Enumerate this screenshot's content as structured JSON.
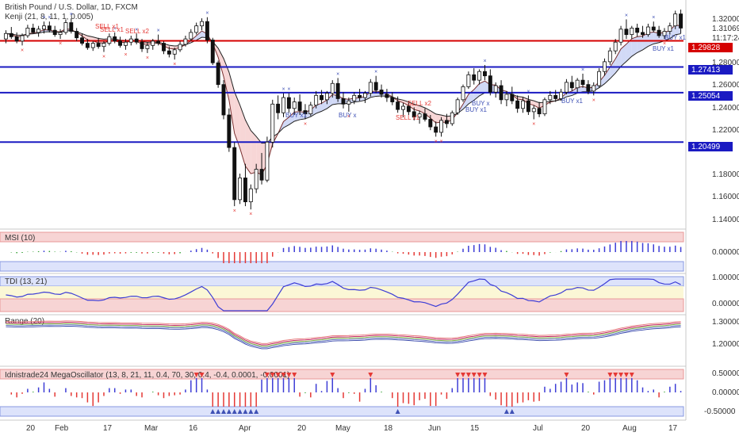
{
  "header": {
    "title_line": "British Pound / U.S. Dollar, 1D, FXCM",
    "indicator_line": "Kenji (21, 8, 11, 1, 0.005)"
  },
  "price_axis": {
    "ticks": [
      "1.32000",
      "1.31069",
      "11:17:24",
      "1.29828",
      "1.28000",
      "1.27413",
      "1.26000",
      "1.25054",
      "1.24000",
      "1.22000",
      "1.20499",
      "1.18000",
      "1.16000",
      "1.14000"
    ],
    "price_badges": [
      {
        "text": "1.29828",
        "color": "#d50000"
      },
      {
        "text": "1.27413",
        "color": "#1a1ac2"
      },
      {
        "text": "1.25054",
        "color": "#1a1ac2"
      },
      {
        "text": "1.20499",
        "color": "#1a1ac2"
      }
    ]
  },
  "time_axis": {
    "labels": [
      "20",
      "Feb",
      "17",
      "Mar",
      "16",
      "Apr",
      "20",
      "May",
      "18",
      "Jun",
      "15",
      "Jul",
      "20",
      "Aug",
      "17"
    ]
  },
  "signals": {
    "sell_labels": [
      "SELL x1",
      "SELL x1",
      "SELL x2",
      "SELL x2",
      "SELL x1"
    ],
    "buy_labels": [
      "BUY x1",
      "BUY x",
      "BUY x",
      "BUY x1",
      "BUY x1",
      "BUY x1",
      "BUY x1"
    ]
  },
  "panes": {
    "msi": {
      "title": "MSI (10)",
      "ticks": [
        "0.00000"
      ]
    },
    "tdi": {
      "title": "TDI (13, 21)",
      "ticks": [
        "1.00000",
        "0.00000"
      ]
    },
    "range": {
      "title": "Range (20)",
      "ticks": [
        "1.30000",
        "1.20000"
      ]
    },
    "mega": {
      "title": "Idnistrade24 MegaOscillator (13, 8, 21, 11, 0.4, 70, 30, 0.4, -0.4, 0.0001, -0.0001)",
      "ticks": [
        "0.50000",
        "0.00000",
        "-0.50000"
      ]
    }
  },
  "colors": {
    "bull": "#ffffff",
    "bear": "#111111",
    "sell": "#e53935",
    "buy": "#3f51b5",
    "hline_red": "#d50000",
    "hline_blue": "#1a1ac2",
    "msi_up": "#3d3dd6",
    "msi_down": "#e53935",
    "msi_flat": "#2e9d2e"
  },
  "chart_data": {
    "type": "candlestick",
    "y_range": [
      1.13,
      1.33
    ],
    "hlines": [
      1.29828,
      1.27413,
      1.25054,
      1.20499
    ],
    "ohlc": [
      [
        1.3,
        1.308,
        1.296,
        1.305
      ],
      [
        1.305,
        1.311,
        1.3,
        1.302
      ],
      [
        1.302,
        1.306,
        1.296,
        1.298
      ],
      [
        1.298,
        1.305,
        1.294,
        1.303
      ],
      [
        1.303,
        1.313,
        1.301,
        1.31
      ],
      [
        1.31,
        1.314,
        1.305,
        1.306
      ],
      [
        1.306,
        1.312,
        1.302,
        1.309
      ],
      [
        1.309,
        1.316,
        1.305,
        1.312
      ],
      [
        1.312,
        1.316,
        1.306,
        1.308
      ],
      [
        1.308,
        1.312,
        1.302,
        1.304
      ],
      [
        1.304,
        1.309,
        1.3,
        1.306
      ],
      [
        1.306,
        1.318,
        1.304,
        1.315
      ],
      [
        1.315,
        1.319,
        1.305,
        1.307
      ],
      [
        1.307,
        1.31,
        1.298,
        1.301
      ],
      [
        1.301,
        1.305,
        1.294,
        1.296
      ],
      [
        1.296,
        1.3,
        1.29,
        1.292
      ],
      [
        1.292,
        1.298,
        1.289,
        1.296
      ],
      [
        1.296,
        1.301,
        1.291,
        1.293
      ],
      [
        1.293,
        1.298,
        1.288,
        1.296
      ],
      [
        1.296,
        1.305,
        1.294,
        1.302
      ],
      [
        1.302,
        1.306,
        1.296,
        1.298
      ],
      [
        1.298,
        1.302,
        1.292,
        1.294
      ],
      [
        1.294,
        1.3,
        1.29,
        1.297
      ],
      [
        1.297,
        1.303,
        1.294,
        1.3
      ],
      [
        1.3,
        1.305,
        1.295,
        1.297
      ],
      [
        1.297,
        1.3,
        1.288,
        1.291
      ],
      [
        1.291,
        1.297,
        1.287,
        1.294
      ],
      [
        1.294,
        1.3,
        1.29,
        1.298
      ],
      [
        1.298,
        1.304,
        1.294,
        1.296
      ],
      [
        1.296,
        1.298,
        1.286,
        1.289
      ],
      [
        1.289,
        1.293,
        1.283,
        1.286
      ],
      [
        1.286,
        1.292,
        1.281,
        1.29
      ],
      [
        1.29,
        1.298,
        1.288,
        1.295
      ],
      [
        1.295,
        1.303,
        1.293,
        1.3
      ],
      [
        1.3,
        1.309,
        1.298,
        1.306
      ],
      [
        1.306,
        1.315,
        1.304,
        1.312
      ],
      [
        1.312,
        1.319,
        1.308,
        1.316
      ],
      [
        1.316,
        1.32,
        1.296,
        1.299
      ],
      [
        1.299,
        1.301,
        1.276,
        1.278
      ],
      [
        1.278,
        1.28,
        1.255,
        1.258
      ],
      [
        1.258,
        1.262,
        1.226,
        1.23
      ],
      [
        1.23,
        1.236,
        1.196,
        1.2
      ],
      [
        1.2,
        1.205,
        1.146,
        1.152
      ],
      [
        1.152,
        1.176,
        1.148,
        1.172
      ],
      [
        1.172,
        1.185,
        1.146,
        1.15
      ],
      [
        1.15,
        1.166,
        1.143,
        1.162
      ],
      [
        1.162,
        1.185,
        1.158,
        1.18
      ],
      [
        1.18,
        1.195,
        1.166,
        1.17
      ],
      [
        1.17,
        1.21,
        1.168,
        1.205
      ],
      [
        1.205,
        1.244,
        1.2,
        1.24
      ],
      [
        1.24,
        1.248,
        1.226,
        1.232
      ],
      [
        1.232,
        1.25,
        1.228,
        1.246
      ],
      [
        1.246,
        1.25,
        1.232,
        1.236
      ],
      [
        1.236,
        1.246,
        1.23,
        1.242
      ],
      [
        1.242,
        1.249,
        1.23,
        1.234
      ],
      [
        1.234,
        1.24,
        1.226,
        1.231
      ],
      [
        1.231,
        1.242,
        1.229,
        1.239
      ],
      [
        1.239,
        1.252,
        1.236,
        1.248
      ],
      [
        1.248,
        1.253,
        1.24,
        1.244
      ],
      [
        1.244,
        1.252,
        1.24,
        1.25
      ],
      [
        1.25,
        1.262,
        1.246,
        1.259
      ],
      [
        1.259,
        1.264,
        1.242,
        1.245
      ],
      [
        1.245,
        1.251,
        1.236,
        1.24
      ],
      [
        1.24,
        1.246,
        1.233,
        1.243
      ],
      [
        1.243,
        1.251,
        1.24,
        1.248
      ],
      [
        1.248,
        1.254,
        1.243,
        1.246
      ],
      [
        1.246,
        1.252,
        1.241,
        1.25
      ],
      [
        1.25,
        1.263,
        1.247,
        1.26
      ],
      [
        1.26,
        1.266,
        1.25,
        1.253
      ],
      [
        1.253,
        1.258,
        1.246,
        1.249
      ],
      [
        1.249,
        1.254,
        1.242,
        1.246
      ],
      [
        1.246,
        1.251,
        1.239,
        1.242
      ],
      [
        1.242,
        1.247,
        1.232,
        1.235
      ],
      [
        1.235,
        1.241,
        1.228,
        1.238
      ],
      [
        1.238,
        1.243,
        1.23,
        1.233
      ],
      [
        1.233,
        1.237,
        1.225,
        1.228
      ],
      [
        1.228,
        1.234,
        1.222,
        1.231
      ],
      [
        1.231,
        1.236,
        1.224,
        1.226
      ],
      [
        1.226,
        1.23,
        1.216,
        1.219
      ],
      [
        1.219,
        1.224,
        1.21,
        1.214
      ],
      [
        1.214,
        1.228,
        1.21,
        1.225
      ],
      [
        1.225,
        1.231,
        1.218,
        1.222
      ],
      [
        1.222,
        1.234,
        1.22,
        1.232
      ],
      [
        1.232,
        1.246,
        1.23,
        1.244
      ],
      [
        1.244,
        1.258,
        1.242,
        1.256
      ],
      [
        1.256,
        1.27,
        1.254,
        1.267
      ],
      [
        1.267,
        1.273,
        1.258,
        1.262
      ],
      [
        1.262,
        1.272,
        1.258,
        1.27
      ],
      [
        1.27,
        1.276,
        1.262,
        1.266
      ],
      [
        1.266,
        1.272,
        1.248,
        1.251
      ],
      [
        1.251,
        1.26,
        1.246,
        1.257
      ],
      [
        1.257,
        1.262,
        1.24,
        1.244
      ],
      [
        1.244,
        1.252,
        1.238,
        1.249
      ],
      [
        1.249,
        1.256,
        1.24,
        1.243
      ],
      [
        1.243,
        1.248,
        1.232,
        1.236
      ],
      [
        1.236,
        1.246,
        1.232,
        1.243
      ],
      [
        1.243,
        1.248,
        1.23,
        1.233
      ],
      [
        1.233,
        1.239,
        1.226,
        1.236
      ],
      [
        1.236,
        1.242,
        1.228,
        1.231
      ],
      [
        1.231,
        1.246,
        1.229,
        1.244
      ],
      [
        1.244,
        1.252,
        1.24,
        1.248
      ],
      [
        1.248,
        1.253,
        1.242,
        1.245
      ],
      [
        1.245,
        1.254,
        1.243,
        1.251
      ],
      [
        1.251,
        1.263,
        1.249,
        1.26
      ],
      [
        1.26,
        1.266,
        1.252,
        1.255
      ],
      [
        1.255,
        1.264,
        1.251,
        1.262
      ],
      [
        1.262,
        1.268,
        1.255,
        1.258
      ],
      [
        1.258,
        1.262,
        1.249,
        1.252
      ],
      [
        1.252,
        1.26,
        1.248,
        1.257
      ],
      [
        1.257,
        1.273,
        1.255,
        1.27
      ],
      [
        1.27,
        1.282,
        1.266,
        1.279
      ],
      [
        1.279,
        1.292,
        1.276,
        1.289
      ],
      [
        1.289,
        1.3,
        1.286,
        1.297
      ],
      [
        1.297,
        1.312,
        1.294,
        1.309
      ],
      [
        1.309,
        1.318,
        1.3,
        1.304
      ],
      [
        1.304,
        1.312,
        1.3,
        1.31
      ],
      [
        1.31,
        1.314,
        1.302,
        1.306
      ],
      [
        1.306,
        1.312,
        1.301,
        1.304
      ],
      [
        1.304,
        1.314,
        1.302,
        1.311
      ],
      [
        1.311,
        1.316,
        1.306,
        1.308
      ],
      [
        1.308,
        1.312,
        1.301,
        1.303
      ],
      [
        1.303,
        1.31,
        1.3,
        1.307
      ],
      [
        1.307,
        1.315,
        1.304,
        1.312
      ],
      [
        1.312,
        1.326,
        1.309,
        1.323
      ],
      [
        1.323,
        1.327,
        1.305,
        1.31
      ]
    ]
  }
}
